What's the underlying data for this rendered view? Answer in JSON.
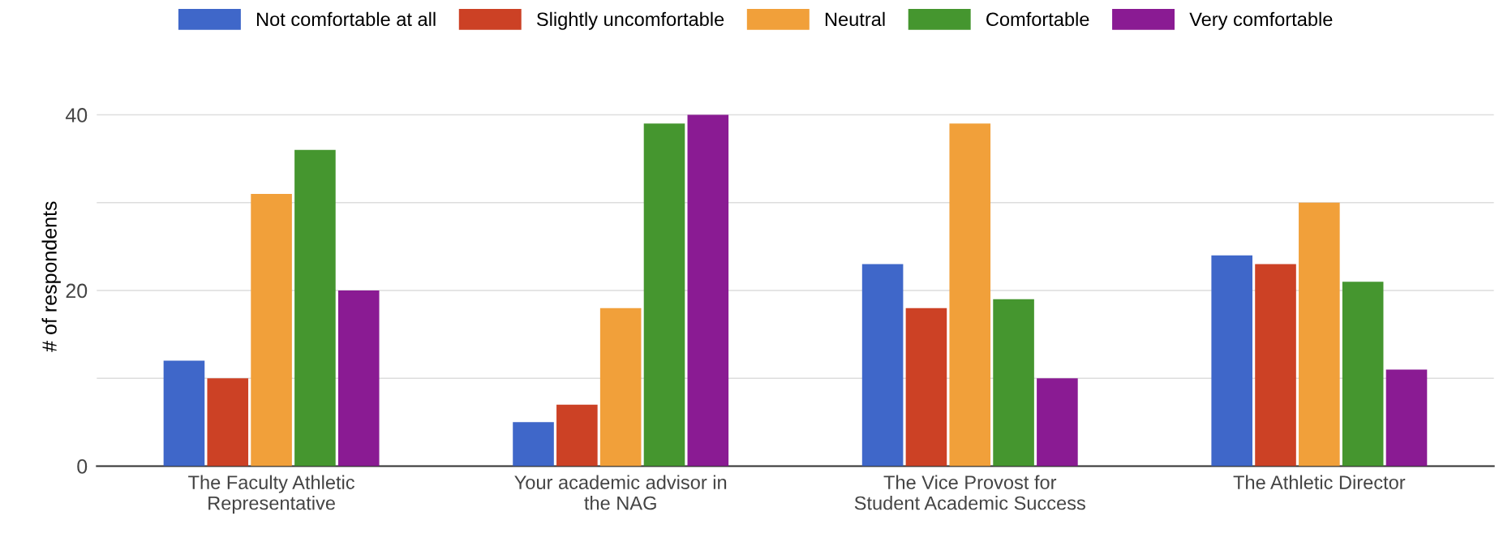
{
  "chart_data": {
    "type": "bar",
    "ylabel": "# of respondents",
    "categories": [
      "The Faculty Athletic\nRepresentative",
      "Your academic advisor in\nthe NAG",
      "The Vice Provost for\nStudent Academic Success",
      "The Athletic Director"
    ],
    "series": [
      {
        "name": "Not comfortable at all",
        "color": "#3f67c9",
        "values": [
          12,
          5,
          23,
          24
        ]
      },
      {
        "name": "Slightly uncomfortable",
        "color": "#cc4125",
        "values": [
          10,
          7,
          18,
          23
        ]
      },
      {
        "name": "Neutral",
        "color": "#f1a03a",
        "values": [
          31,
          18,
          39,
          30
        ]
      },
      {
        "name": "Comfortable",
        "color": "#45962f",
        "values": [
          36,
          39,
          19,
          21
        ]
      },
      {
        "name": "Very comfortable",
        "color": "#8a1b93",
        "values": [
          20,
          40,
          10,
          11
        ]
      }
    ],
    "ylim": [
      0,
      40
    ],
    "yticks": [
      0,
      {
        "value": 10,
        "label": null
      },
      20,
      {
        "value": 30,
        "label": null
      },
      40
    ],
    "grid": "y",
    "legend": "top"
  }
}
